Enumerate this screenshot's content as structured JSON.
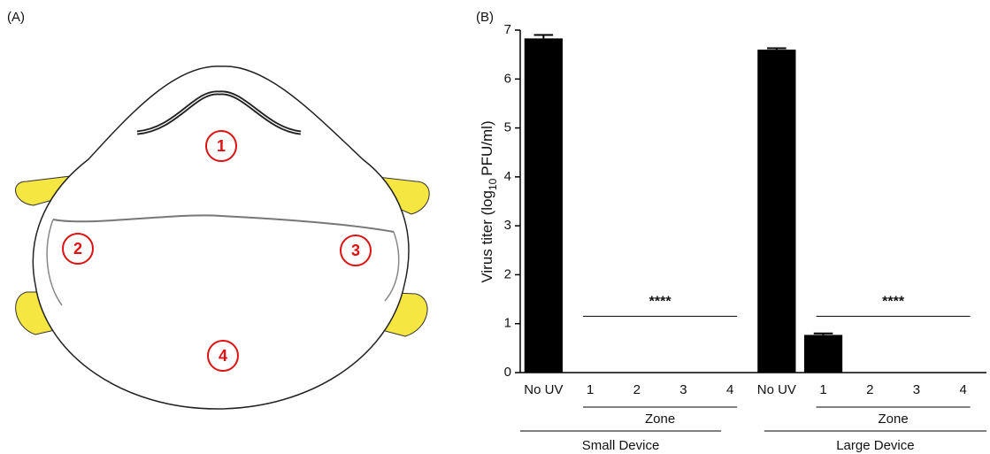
{
  "diagram": {
    "label": "(A)",
    "zones": [
      "1",
      "2",
      "3",
      "4"
    ]
  },
  "chart_data": {
    "type": "bar",
    "label": "(B)",
    "ylabel": {
      "main": "Virus titer (log",
      "sub": "10",
      "unit": "PFU/ml)"
    },
    "categories": [
      "No UV",
      "1",
      "2",
      "3",
      "4",
      "No UV",
      "1",
      "2",
      "3",
      "4"
    ],
    "values": [
      6.83,
      0,
      0,
      0,
      0,
      6.6,
      0.77,
      0,
      0,
      0
    ],
    "errors": [
      0.07,
      0,
      0,
      0,
      0,
      0.03,
      0.03,
      0,
      0,
      0
    ],
    "color": "#000000",
    "ylim": [
      0,
      7
    ],
    "yticks": [
      0,
      1,
      2,
      3,
      4,
      5,
      6,
      7
    ],
    "groups": [
      {
        "name": "Small Device",
        "sublabel": "Zone"
      },
      {
        "name": "Large Device",
        "sublabel": "Zone"
      }
    ],
    "annotations": [
      "****",
      "****"
    ]
  }
}
